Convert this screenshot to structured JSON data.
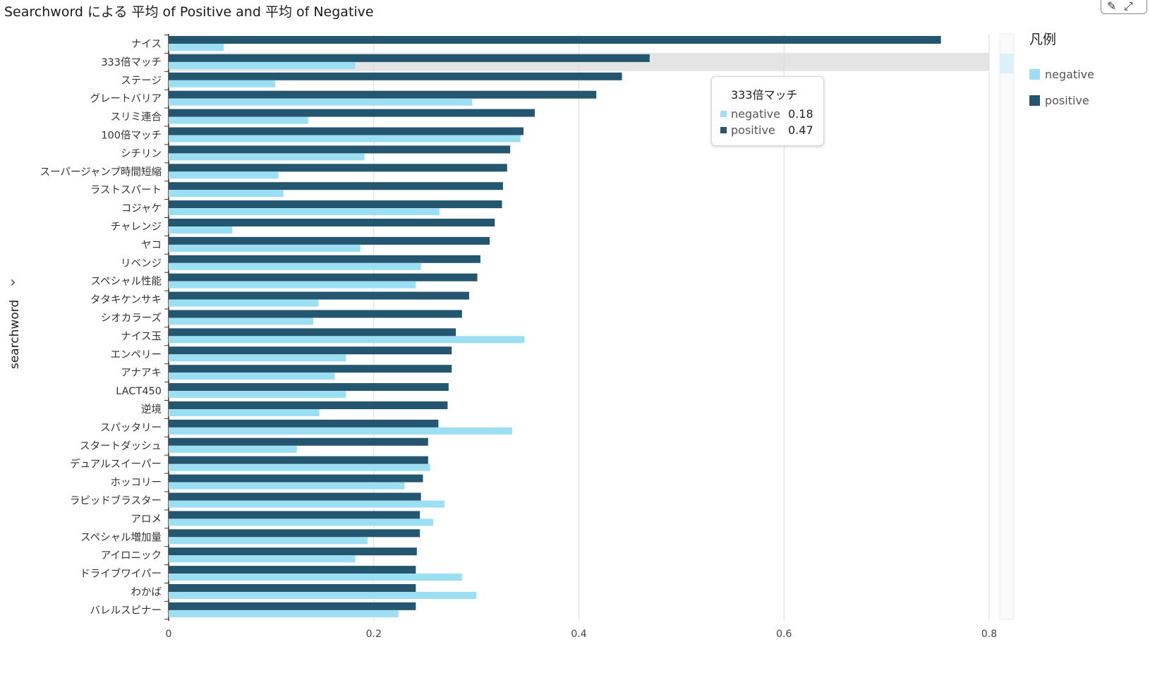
{
  "title": "Searchword による 平均 of Positive and 平均 of Negative",
  "y_axis_label": "searchword",
  "legend": {
    "title": "凡例",
    "items": [
      {
        "label": "negative",
        "color": "#9ddff2"
      },
      {
        "label": "positive",
        "color": "#25566f"
      }
    ]
  },
  "tooltip": {
    "title": "333倍マッチ",
    "rows": [
      {
        "label": "negative",
        "value": "0.18",
        "color": "#9ddff2"
      },
      {
        "label": "positive",
        "value": "0.47",
        "color": "#25566f"
      }
    ]
  },
  "chart_data": {
    "type": "bar",
    "orientation": "horizontal",
    "xlim": [
      0,
      0.8
    ],
    "x_ticks": [
      "0",
      "0.2",
      "0.4",
      "0.6",
      "0.8"
    ],
    "grid": true,
    "legend_position": "right",
    "highlighted_category": "333倍マッチ",
    "categories": [
      "ナイス",
      "333倍マッチ",
      "ステージ",
      "グレートバリア",
      "スリミ連合",
      "100倍マッチ",
      "シチリン",
      "スーパージャンプ時間短縮",
      "ラストスパート",
      "コジャケ",
      "チャレンジ",
      "ヤコ",
      "リベンジ",
      "スペシャル性能",
      "タタキケンサキ",
      "シオカラーズ",
      "ナイス玉",
      "エンペリー",
      "アナアキ",
      "LACT450",
      "逆境",
      "スパッタリー",
      "スタートダッシュ",
      "デュアルスイーパー",
      "ホッコリー",
      "ラピッドブラスター",
      "アロメ",
      "スペシャル増加量",
      "アイロニック",
      "ドライブワイパー",
      "わかば",
      "バレルスピナー"
    ],
    "series": [
      {
        "name": "positive",
        "color": "#25566f",
        "values": [
          0.753,
          0.469,
          0.442,
          0.417,
          0.357,
          0.346,
          0.333,
          0.33,
          0.326,
          0.325,
          0.318,
          0.313,
          0.304,
          0.301,
          0.293,
          0.286,
          0.28,
          0.276,
          0.276,
          0.273,
          0.272,
          0.263,
          0.253,
          0.253,
          0.248,
          0.246,
          0.245,
          0.245,
          0.242,
          0.241,
          0.241,
          0.241
        ]
      },
      {
        "name": "negative",
        "color": "#9ddff2",
        "values": [
          0.054,
          0.182,
          0.104,
          0.296,
          0.136,
          0.343,
          0.191,
          0.107,
          0.112,
          0.264,
          0.062,
          0.187,
          0.246,
          0.241,
          0.146,
          0.141,
          0.347,
          0.173,
          0.162,
          0.173,
          0.147,
          0.335,
          0.125,
          0.255,
          0.23,
          0.269,
          0.258,
          0.194,
          0.182,
          0.286,
          0.3,
          0.224
        ]
      }
    ]
  }
}
